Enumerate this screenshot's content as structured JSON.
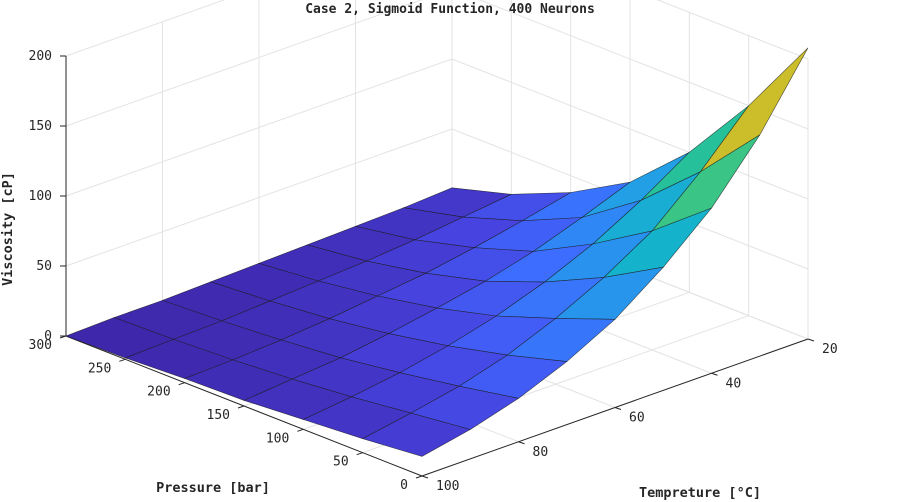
{
  "chart_data": {
    "type": "surface",
    "title": "Case 2, Sigmoid Function, 400 Neurons",
    "xlabel": "Pressure [bar]",
    "ylabel": "Tempreture [°C]",
    "zlabel": "Viscosity [cP]",
    "pressure": [
      0,
      50,
      100,
      150,
      200,
      250,
      300
    ],
    "temperature": [
      20,
      30,
      40,
      50,
      60,
      70,
      80,
      90,
      100
    ],
    "viscosity": [
      [
        208,
        158,
        118,
        88,
        63,
        45,
        31,
        21,
        14
      ],
      [
        150,
        115,
        85,
        64,
        47,
        33,
        23,
        16,
        10
      ],
      [
        100,
        78,
        59,
        44,
        32,
        23,
        16,
        11,
        7
      ],
      [
        62,
        49,
        37,
        28,
        21,
        15,
        10,
        7,
        4
      ],
      [
        38,
        30,
        23,
        17,
        13,
        9,
        6,
        4,
        3
      ],
      [
        20,
        16,
        12,
        9,
        7,
        5,
        3,
        2,
        1
      ],
      [
        8,
        6,
        5,
        4,
        3,
        2,
        1,
        1,
        0
      ]
    ],
    "xlim": [
      0,
      300
    ],
    "ylim": [
      20,
      100
    ],
    "zlim": [
      0,
      200
    ],
    "xticks": [
      "0",
      "50",
      "100",
      "150",
      "200",
      "250",
      "300"
    ],
    "yticks": [
      "20",
      "40",
      "60",
      "80",
      "100"
    ],
    "zticks": [
      "0",
      "50",
      "100",
      "150",
      "200"
    ],
    "colormap": [
      "#3e26a8",
      "#4743e0",
      "#3e69ff",
      "#2b8ef2",
      "#1ca9dc",
      "#0cbdb5",
      "#3cc583",
      "#8fca3c",
      "#d4bb28",
      "#fdc031",
      "#f9e420"
    ],
    "grid": true
  }
}
